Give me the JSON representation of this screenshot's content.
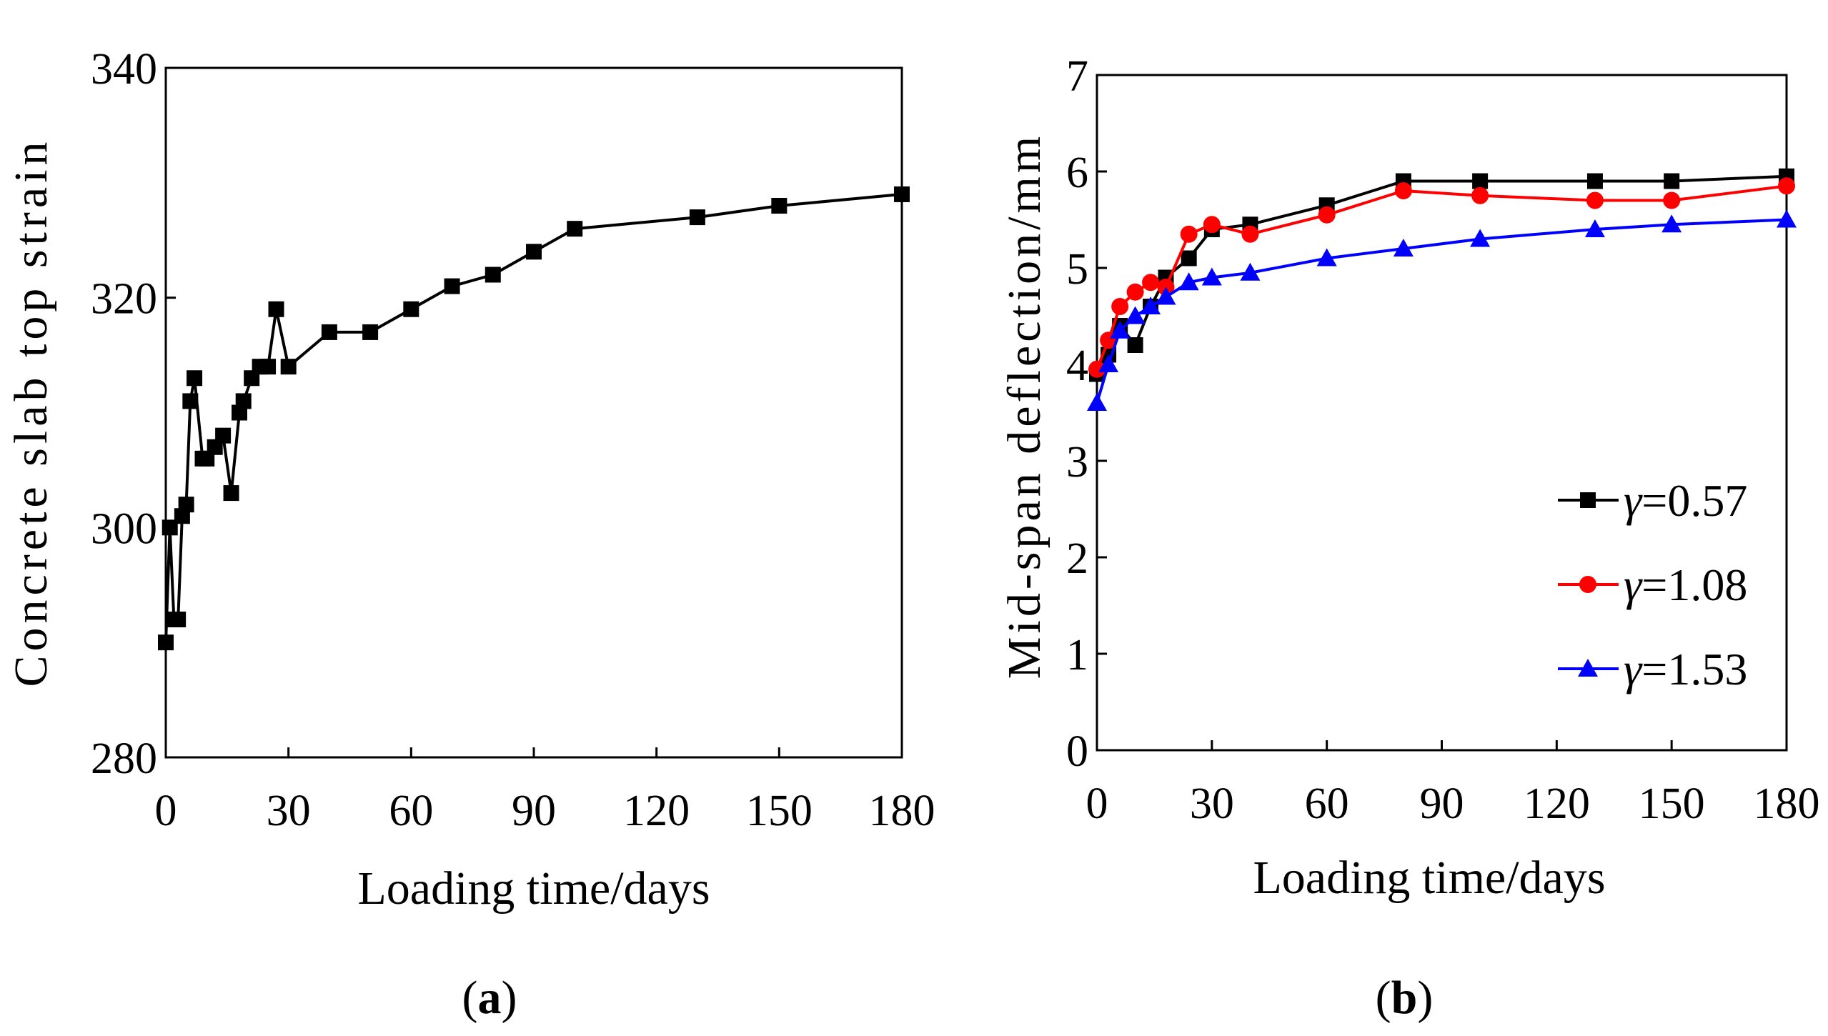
{
  "chart_data": [
    {
      "panel": "(a)",
      "panel_letter": "a",
      "type": "line",
      "title": "",
      "xlabel": "Loading time/days",
      "ylabel": "Concrete slab top strain",
      "xlim": [
        0,
        180
      ],
      "ylim": [
        280,
        340
      ],
      "xticks": [
        0,
        30,
        60,
        90,
        120,
        150,
        180
      ],
      "yticks": [
        280,
        300,
        320,
        340
      ],
      "grid": false,
      "series": [
        {
          "name": "strain",
          "color": "#000000",
          "marker": "square",
          "x": [
            0,
            1,
            2,
            3,
            4,
            5,
            6,
            7,
            9,
            10,
            12,
            14,
            16,
            18,
            19,
            21,
            23,
            25,
            27,
            30,
            40,
            50,
            60,
            70,
            80,
            90,
            100,
            130,
            150,
            180
          ],
          "y": [
            290,
            300,
            292,
            292,
            301,
            302,
            311,
            313,
            306,
            306,
            307,
            308,
            303,
            310,
            311,
            313,
            314,
            314,
            319,
            314,
            317,
            317,
            319,
            321,
            322,
            324,
            326,
            327,
            328,
            329
          ]
        }
      ]
    },
    {
      "panel": "(b)",
      "panel_letter": "b",
      "type": "line",
      "title": "",
      "xlabel": "Loading time/days",
      "ylabel": "Mid-span deflection/mm",
      "xlim": [
        0,
        180
      ],
      "ylim": [
        0,
        7
      ],
      "xticks": [
        0,
        30,
        60,
        90,
        120,
        150,
        180
      ],
      "yticks": [
        0,
        1,
        2,
        3,
        4,
        5,
        6,
        7
      ],
      "grid": false,
      "legend_position": "bottom-right",
      "series": [
        {
          "name": "γ=0.57",
          "symbol": "γ",
          "value_text": "=0.57",
          "color": "#000000",
          "marker": "square",
          "x": [
            0,
            3,
            6,
            10,
            14,
            18,
            24,
            30,
            40,
            60,
            80,
            100,
            130,
            150,
            180
          ],
          "y": [
            3.9,
            4.1,
            4.4,
            4.2,
            4.6,
            4.9,
            5.1,
            5.4,
            5.45,
            5.65,
            5.9,
            5.9,
            5.9,
            5.9,
            5.95
          ]
        },
        {
          "name": "γ=1.08",
          "symbol": "γ",
          "value_text": "=1.08",
          "color": "#ff0000",
          "marker": "circle",
          "x": [
            0,
            3,
            6,
            10,
            14,
            18,
            24,
            30,
            40,
            60,
            80,
            100,
            130,
            150,
            180
          ],
          "y": [
            3.95,
            4.25,
            4.6,
            4.75,
            4.85,
            4.8,
            5.35,
            5.45,
            5.35,
            5.55,
            5.8,
            5.75,
            5.7,
            5.7,
            5.85
          ]
        },
        {
          "name": "γ=1.53",
          "symbol": "γ",
          "value_text": "=1.53",
          "color": "#0000ff",
          "marker": "triangle",
          "x": [
            0,
            3,
            6,
            10,
            14,
            18,
            24,
            30,
            40,
            60,
            80,
            100,
            130,
            150,
            180
          ],
          "y": [
            3.6,
            4.0,
            4.35,
            4.5,
            4.6,
            4.7,
            4.85,
            4.9,
            4.95,
            5.1,
            5.2,
            5.3,
            5.4,
            5.45,
            5.5
          ]
        }
      ]
    }
  ]
}
